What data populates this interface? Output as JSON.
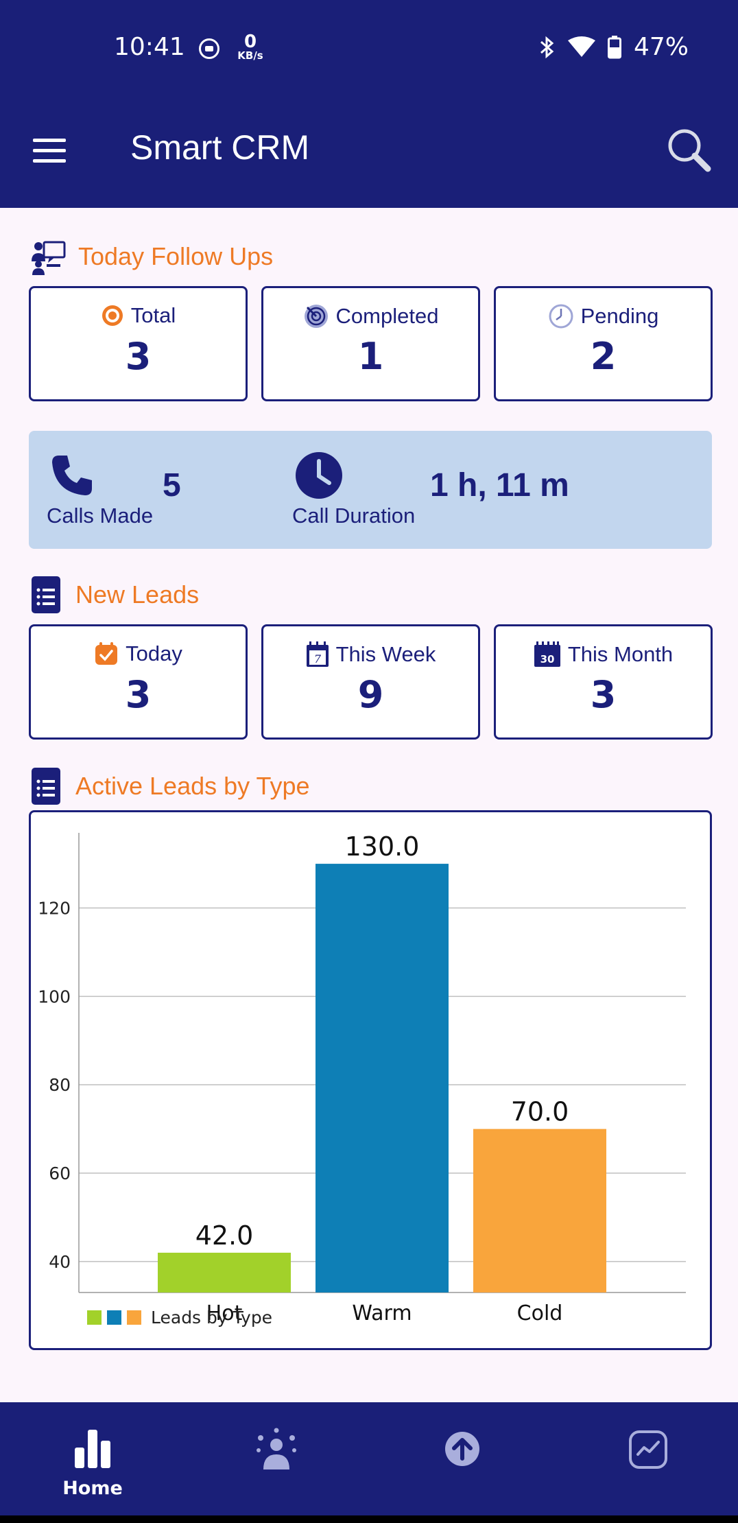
{
  "status_bar": {
    "time": "10:41",
    "net_speed": "0",
    "net_speed_unit": "KB/s",
    "battery": "47%"
  },
  "app_bar": {
    "title": "Smart CRM"
  },
  "follow_ups": {
    "title": "Today Follow Ups",
    "cards": [
      {
        "label": "Total",
        "value": "3",
        "icon": "target-icon"
      },
      {
        "label": "Completed",
        "value": "1",
        "icon": "radar-icon"
      },
      {
        "label": "Pending",
        "value": "2",
        "icon": "clock-icon"
      }
    ]
  },
  "calls": {
    "calls_made_label": "Calls Made",
    "calls_made_value": "5",
    "duration_label": "Call Duration",
    "duration_value": "1 h, 11 m"
  },
  "new_leads": {
    "title": "New Leads",
    "cards": [
      {
        "label": "Today",
        "value": "3",
        "icon": "calendar-check-icon"
      },
      {
        "label": "This Week",
        "value": "9",
        "icon": "calendar-7-icon"
      },
      {
        "label": "This Month",
        "value": "3",
        "icon": "calendar-30-icon"
      }
    ],
    "calendar_week_number": "7",
    "calendar_month_number": "30"
  },
  "active_leads": {
    "title": "Active Leads by Type"
  },
  "chart_data": {
    "type": "bar",
    "categories": [
      "Hot",
      "Warm",
      "Cold"
    ],
    "series": [
      {
        "name": "Leads by Type",
        "values": [
          42.0,
          130.0,
          70.0
        ]
      }
    ],
    "data_labels": [
      "42.0",
      "130.0",
      "70.0"
    ],
    "colors": [
      "#A2D12A",
      "#0E7FB6",
      "#F9A53C"
    ],
    "y_ticks": [
      40,
      60,
      80,
      100,
      120
    ],
    "ylim": [
      33,
      137
    ],
    "grid": true,
    "legend": "bottom-left"
  },
  "bottom_nav": {
    "items": [
      {
        "label": "Home",
        "icon": "bar-chart-icon",
        "active": true
      },
      {
        "label": "",
        "icon": "people-icon"
      },
      {
        "label": "",
        "icon": "upload-icon"
      },
      {
        "label": "",
        "icon": "trend-icon"
      }
    ]
  },
  "colors": {
    "primary": "#1A1F78",
    "accent": "#EE7A25",
    "panel": "#C2D6EE",
    "background": "#FCF5FC"
  }
}
